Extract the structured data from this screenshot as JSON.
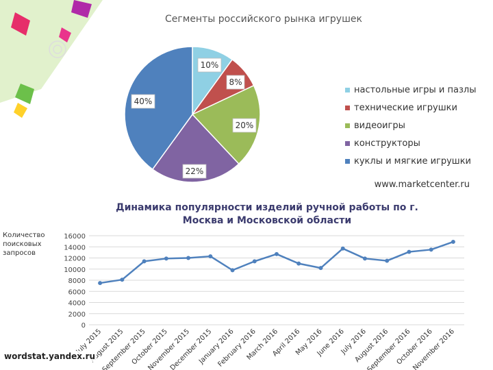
{
  "chart_data": [
    {
      "type": "pie",
      "title": "Сегменты российского рынка игрушек",
      "slices": [
        {
          "label": "настольные игры и пазлы",
          "value": 10,
          "display": "10%",
          "color": "#8fd0e4"
        },
        {
          "label": "технические игрушки",
          "value": 8,
          "display": "8%",
          "color": "#c0504d"
        },
        {
          "label": "видеоигры",
          "value": 20,
          "display": "20%",
          "color": "#9bbb59"
        },
        {
          "label": "конструкторы",
          "value": 22,
          "display": "22%",
          "color": "#8064a2"
        },
        {
          "label": "куклы и мягкие игрушки",
          "value": 40,
          "display": "40%",
          "color": "#4f81bd"
        }
      ],
      "legend_position": "right",
      "source": "www.marketcenter.ru"
    },
    {
      "type": "line",
      "title": "Динамика популярности изделий ручной работы по г. Москва и Московской области",
      "ylabel": "Количество поисковых запросов",
      "ylim": [
        0,
        16000
      ],
      "yticks": [
        "0",
        "2000",
        "4000",
        "6000",
        "8000",
        "10000",
        "12000",
        "14000",
        "16000"
      ],
      "grid": true,
      "categories": [
        "July 2015",
        "August 2015",
        "September 2015",
        "October 2015",
        "November 2015",
        "December 2015",
        "January 2016",
        "February 2016",
        "March 2016",
        "April 2016",
        "May 2016",
        "June 2016",
        "July 2016",
        "August 2016",
        "September 2016",
        "October 2016",
        "November 2016"
      ],
      "series": [
        {
          "values": [
            7500,
            8100,
            11400,
            11900,
            12000,
            12300,
            9800,
            11400,
            12700,
            11000,
            10200,
            13700,
            11900,
            11500,
            13100,
            13500,
            14900
          ],
          "color": "#4f81bd"
        }
      ],
      "source": "wordstat.yandex.ru"
    }
  ]
}
